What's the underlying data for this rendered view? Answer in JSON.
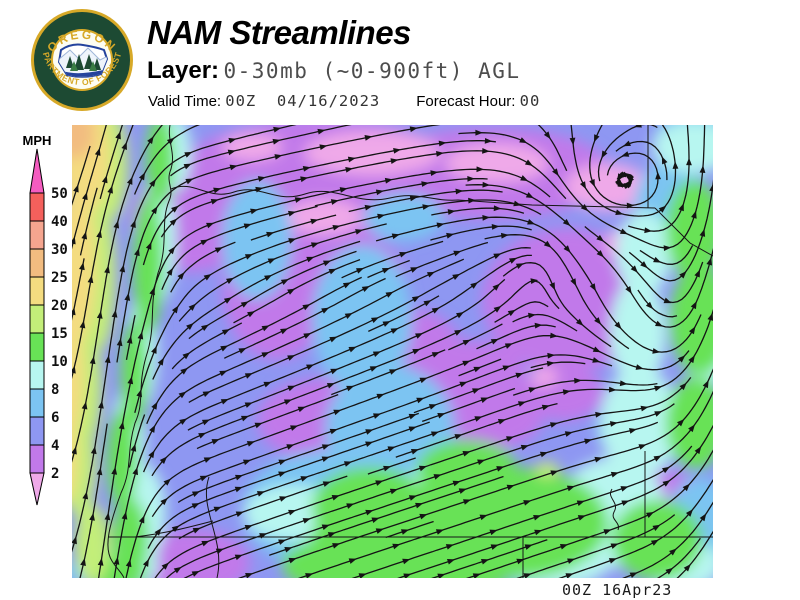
{
  "header": {
    "title": "NAM Streamlines",
    "layer_label": "Layer:",
    "layer_value": "0-30mb (~0-900ft) AGL",
    "valid_time_label": "Valid Time:",
    "valid_time_value": "00Z  04/16/2023",
    "forecast_hour_label": "Forecast Hour:",
    "forecast_hour_value": "00",
    "logo": {
      "ring_text_top": "OREGON",
      "ring_text_bottom": "DEPARTMENT OF FORESTRY",
      "ring_color": "#1d4a33",
      "gold_color": "#d7a928"
    }
  },
  "legend": {
    "units_label": "MPH",
    "above_max_color": "#f45cc0",
    "below_min_color": "#efa9e9",
    "bands": [
      {
        "min": 40,
        "max": 50,
        "color": "#f4605c"
      },
      {
        "min": 30,
        "max": 40,
        "color": "#f5a58f"
      },
      {
        "min": 25,
        "max": 30,
        "color": "#f2bc80"
      },
      {
        "min": 20,
        "max": 25,
        "color": "#f4dc80"
      },
      {
        "min": 15,
        "max": 20,
        "color": "#c3ee79"
      },
      {
        "min": 10,
        "max": 15,
        "color": "#68e256"
      },
      {
        "min": 8,
        "max": 10,
        "color": "#b7f6f0"
      },
      {
        "min": 6,
        "max": 8,
        "color": "#7cc4f2"
      },
      {
        "min": 4,
        "max": 6,
        "color": "#8e97f2"
      },
      {
        "min": 2,
        "max": 4,
        "color": "#c179ea"
      }
    ]
  },
  "map": {
    "timestamp": "00Z 16Apr23"
  }
}
